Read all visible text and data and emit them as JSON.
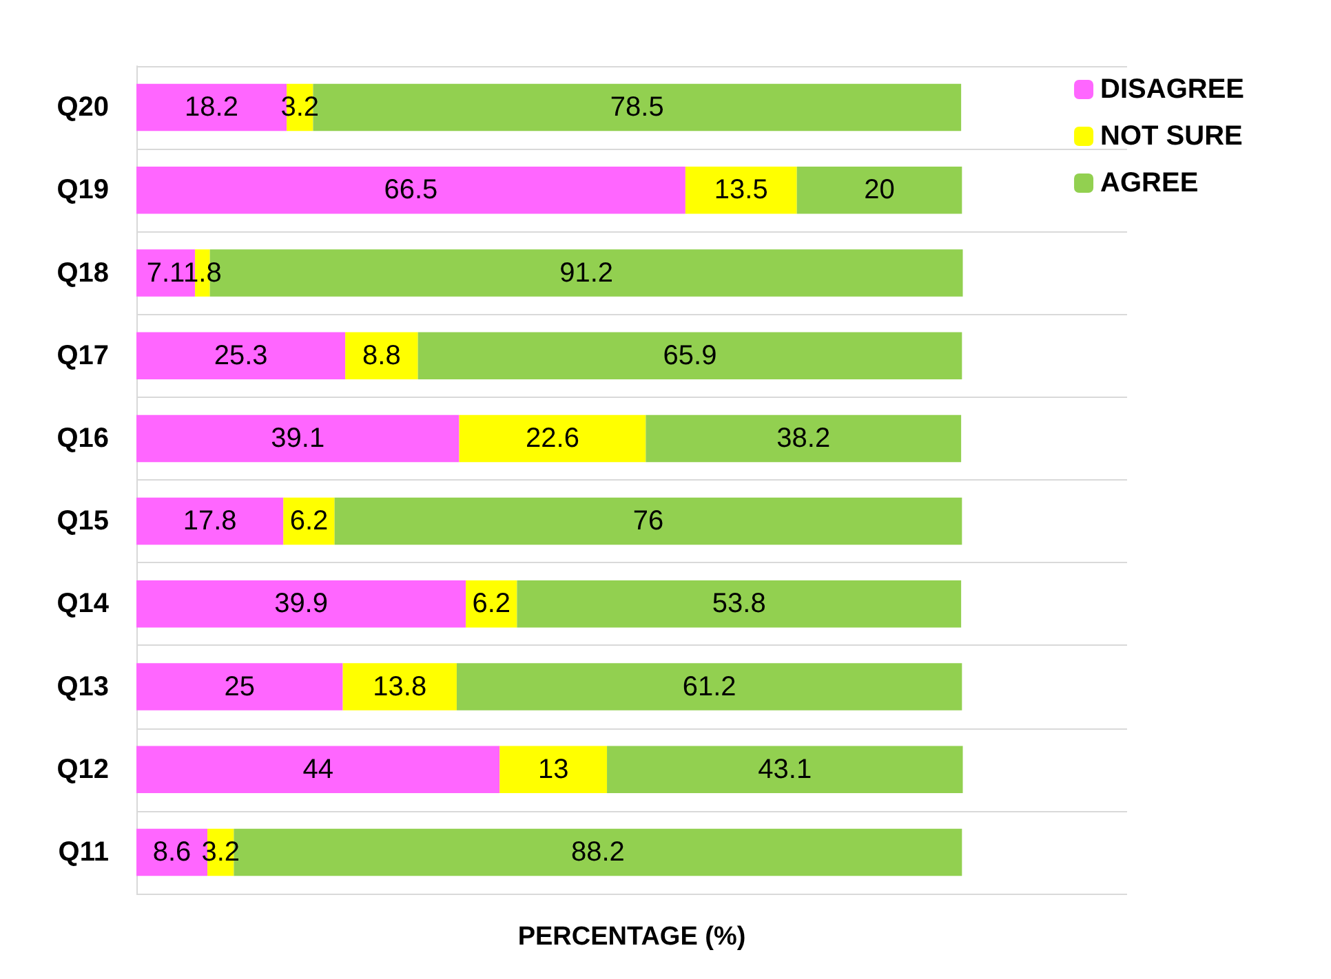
{
  "chart_data": {
    "type": "bar",
    "orientation": "horizontal",
    "stacked": true,
    "xlabel": "PERCENTAGE (%)",
    "categories": [
      "Q20",
      "Q19",
      "Q18",
      "Q17",
      "Q16",
      "Q15",
      "Q14",
      "Q13",
      "Q12",
      "Q11"
    ],
    "series": [
      {
        "name": "DISAGREE",
        "color": "#ff66ff",
        "values": [
          18.2,
          66.5,
          7.1,
          25.3,
          39.1,
          17.8,
          39.9,
          25,
          44,
          8.6
        ]
      },
      {
        "name": "NOT SURE",
        "color": "#ffff00",
        "values": [
          3.2,
          13.5,
          1.8,
          8.8,
          22.6,
          6.2,
          6.2,
          13.8,
          13,
          3.2
        ]
      },
      {
        "name": "AGREE",
        "color": "#92d050",
        "values": [
          78.5,
          20,
          91.2,
          65.9,
          38.2,
          76,
          53.8,
          61.2,
          43.1,
          88.2
        ]
      }
    ],
    "xlim": [
      0,
      120
    ],
    "tick_labels": "y",
    "data_labels": true,
    "grid": "y",
    "legend": "top right"
  }
}
